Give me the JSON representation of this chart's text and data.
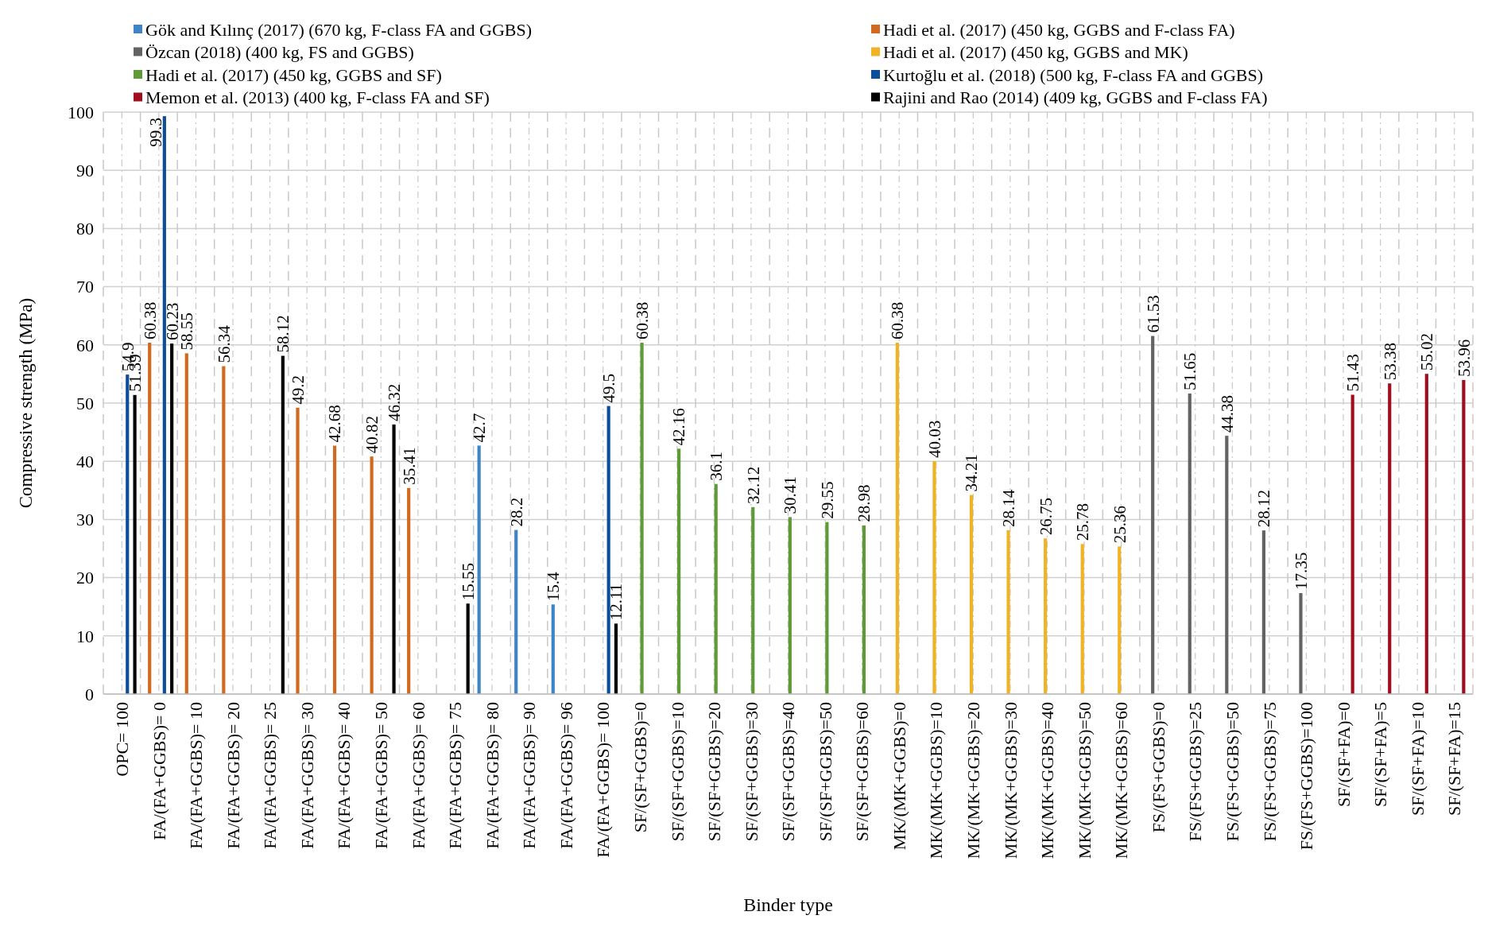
{
  "chart_data": {
    "type": "bar",
    "xlabel": "Binder type",
    "ylabel": "Compressive strength (MPa)",
    "categories": [
      "OPC= 100",
      "FA/(FA+GGBS)= 0",
      "FA/(FA+GGBS)= 10",
      "FA/(FA+GGBS)= 20",
      "FA/(FA+GGBS)= 25",
      "FA/(FA+GGBS)= 30",
      "FA/(FA+GGBS)= 40",
      "FA/(FA+GGBS)= 50",
      "FA/(FA+GGBS)= 60",
      "FA/(FA+GGBS)= 75",
      "FA/(FA+GGBS)= 80",
      "FA/(FA+GGBS)= 90",
      "FA/(FA+GGBS)= 96",
      "FA/(FA+GGBS)= 100",
      "SF/(SF+GGBS)=0",
      "SF/(SF+GGBS)=10",
      "SF/(SF+GGBS)=20",
      "SF/(SF+GGBS)=30",
      "SF/(SF+GGBS)=40",
      "SF/(SF+GGBS)=50",
      "SF/(SF+GGBS)=60",
      "MK/(MK+GGBS)=0",
      "MK/(MK+GGBS)=10",
      "MK/(MK+GGBS)=20",
      "MK/(MK+GGBS)=30",
      "MK/(MK+GGBS)=40",
      "MK/(MK+GGBS)=50",
      "MK/(MK+GGBS)=60",
      "FS/(FS+GGBS)=0",
      "FS/(FS+GGBS)=25",
      "FS/(FS+GGBS)=50",
      "FS/(FS+GGBS)=75",
      "FS/(FS+GGBS)=100",
      "SF/(SF+FA)=0",
      "SF/(SF+FA)=5",
      "SF/(SF+FA)=10",
      "SF/(SF+FA)=15"
    ],
    "series": [
      {
        "name": "Gök and Kılınç (2017) (670 kg, F-class FA and GGBS)",
        "color": "#3d85c6",
        "values": [
          null,
          null,
          null,
          null,
          null,
          null,
          null,
          null,
          null,
          null,
          42.7,
          28.2,
          15.4,
          null,
          null,
          null,
          null,
          null,
          null,
          null,
          null,
          null,
          null,
          null,
          null,
          null,
          null,
          null,
          null,
          null,
          null,
          null,
          null,
          null,
          null,
          null,
          null
        ]
      },
      {
        "name": "Hadi et al. (2017) (450 kg, GGBS and F-class FA)",
        "color": "#d2691e",
        "values": [
          null,
          60.38,
          58.55,
          56.34,
          null,
          49.2,
          42.68,
          40.82,
          35.41,
          null,
          null,
          null,
          null,
          null,
          null,
          null,
          null,
          null,
          null,
          null,
          null,
          null,
          null,
          null,
          null,
          null,
          null,
          null,
          null,
          null,
          null,
          null,
          null,
          null,
          null,
          null,
          null
        ]
      },
      {
        "name": "Özcan (2018) (400 kg, FS and GGBS)",
        "color": "#636363",
        "values": [
          null,
          null,
          null,
          null,
          null,
          null,
          null,
          null,
          null,
          null,
          null,
          null,
          null,
          null,
          null,
          null,
          null,
          null,
          null,
          null,
          null,
          null,
          null,
          null,
          null,
          null,
          null,
          null,
          61.53,
          51.65,
          44.38,
          28.12,
          17.35,
          null,
          null,
          null,
          null
        ]
      },
      {
        "name": "Hadi et al. (2017) (450 kg, GGBS and MK)",
        "color": "#f0b323",
        "values": [
          null,
          null,
          null,
          null,
          null,
          null,
          null,
          null,
          null,
          null,
          null,
          null,
          null,
          null,
          null,
          null,
          null,
          null,
          null,
          null,
          null,
          60.38,
          40.03,
          34.21,
          28.14,
          26.75,
          25.78,
          25.36,
          null,
          null,
          null,
          null,
          null,
          null,
          null,
          null,
          null
        ]
      },
      {
        "name": "Hadi et al. (2017) (450 kg, GGBS and SF)",
        "color": "#5e9a35",
        "values": [
          null,
          null,
          null,
          null,
          null,
          null,
          null,
          null,
          null,
          null,
          null,
          null,
          null,
          null,
          60.38,
          42.16,
          36.1,
          32.12,
          30.41,
          29.55,
          28.98,
          null,
          null,
          null,
          null,
          null,
          null,
          null,
          null,
          null,
          null,
          null,
          null,
          null,
          null,
          null,
          null
        ]
      },
      {
        "name": "Kurtoğlu et al. (2018) (500 kg, F-class FA and GGBS)",
        "color": "#0b4f9c",
        "values": [
          54.9,
          99.3,
          null,
          null,
          null,
          null,
          null,
          null,
          null,
          null,
          null,
          null,
          null,
          49.5,
          null,
          null,
          null,
          null,
          null,
          null,
          null,
          null,
          null,
          null,
          null,
          null,
          null,
          null,
          null,
          null,
          null,
          null,
          null,
          null,
          null,
          null,
          null
        ]
      },
      {
        "name": "Memon et al. (2013) (400 kg, F-class FA and SF)",
        "color": "#a00d1e",
        "values": [
          null,
          null,
          null,
          null,
          null,
          null,
          null,
          null,
          null,
          null,
          null,
          null,
          null,
          null,
          null,
          null,
          null,
          null,
          null,
          null,
          null,
          null,
          null,
          null,
          null,
          null,
          null,
          null,
          null,
          null,
          null,
          null,
          null,
          51.43,
          53.38,
          55.02,
          53.96
        ]
      },
      {
        "name": "Rajini and Rao (2014) (409 kg, GGBS and F-class FA)",
        "color": "#000000",
        "values": [
          51.39,
          60.23,
          null,
          null,
          58.12,
          null,
          null,
          46.32,
          null,
          15.55,
          null,
          null,
          null,
          12.11,
          null,
          null,
          null,
          null,
          null,
          null,
          null,
          null,
          null,
          null,
          null,
          null,
          null,
          null,
          null,
          null,
          null,
          null,
          null,
          null,
          null,
          null,
          null
        ]
      }
    ],
    "ylim": [
      0,
      100
    ],
    "yticks": [
      0,
      10,
      20,
      30,
      40,
      50,
      60,
      70,
      80,
      90,
      100
    ],
    "grid": true,
    "legend": "top",
    "data_labels": true
  }
}
